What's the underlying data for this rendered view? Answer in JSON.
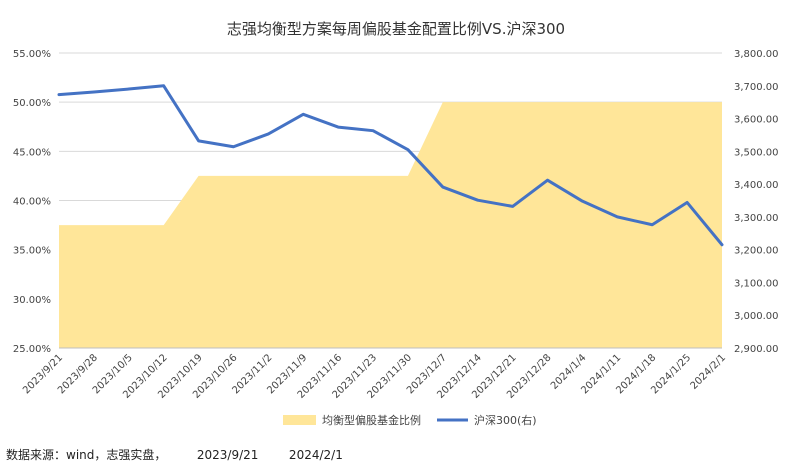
{
  "chart_data": {
    "type": "area+line",
    "title": "志强均衡型方案每周偏股基金配置比例VS.沪深300",
    "categories": [
      "2023/9/21",
      "2023/9/28",
      "2023/10/5",
      "2023/10/12",
      "2023/10/19",
      "2023/10/26",
      "2023/11/2",
      "2023/11/9",
      "2023/11/16",
      "2023/11/23",
      "2023/11/30",
      "2023/12/7",
      "2023/12/14",
      "2023/12/21",
      "2023/12/28",
      "2024/1/4",
      "2024/1/11",
      "2024/1/18",
      "2024/1/25",
      "2024/2/1"
    ],
    "series": [
      {
        "name": "均衡型偏股基金比例",
        "kind": "area",
        "axis": "left",
        "color": "#FFE699",
        "values": [
          0.375,
          0.375,
          0.375,
          0.375,
          0.425,
          0.425,
          0.425,
          0.425,
          0.425,
          0.425,
          0.425,
          0.5,
          0.5,
          0.5,
          0.5,
          0.5,
          0.5,
          0.5,
          0.5,
          0.5
        ]
      },
      {
        "name": "沪深300(右)",
        "kind": "line",
        "axis": "right",
        "color": "#4472C4",
        "values": [
          3673,
          3681,
          3690,
          3700,
          3532,
          3514,
          3553,
          3613,
          3574,
          3563,
          3505,
          3391,
          3351,
          3332,
          3412,
          3348,
          3300,
          3276,
          3344,
          3215
        ]
      }
    ],
    "y_left": {
      "min": 0.25,
      "max": 0.55,
      "step": 0.05,
      "ticks": [
        "25.00%",
        "30.00%",
        "35.00%",
        "40.00%",
        "45.00%",
        "50.00%",
        "55.00%"
      ]
    },
    "y_right": {
      "min": 2900,
      "max": 3800,
      "step": 100,
      "ticks": [
        "2,900.00",
        "3,000.00",
        "3,100.00",
        "3,200.00",
        "3,300.00",
        "3,400.00",
        "3,500.00",
        "3,600.00",
        "3,700.00",
        "3,800.00"
      ]
    },
    "grid": true,
    "legend": "bottom-center"
  },
  "footer": {
    "source_note": "数据来源：wind，志强实盘，        2023/9/21        2024/2/1"
  }
}
